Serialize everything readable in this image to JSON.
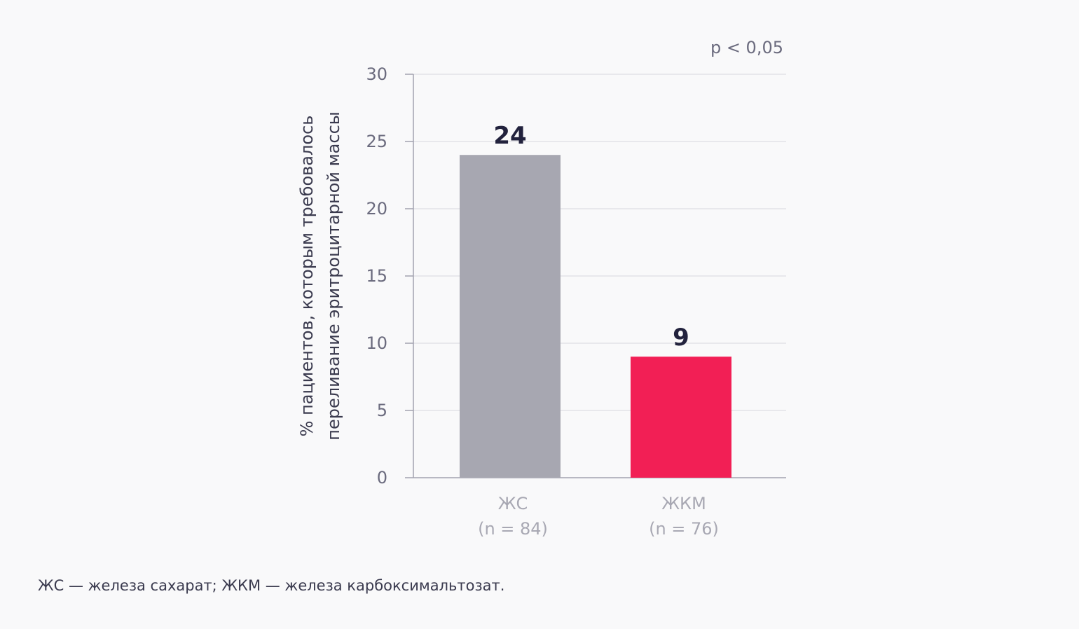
{
  "chart_data": {
    "type": "bar",
    "categories": [
      "ЖС",
      "ЖКМ"
    ],
    "category_subtitles": [
      "(n = 84)",
      "(n = 76)"
    ],
    "values": [
      24,
      9
    ],
    "data_labels": [
      "24",
      "9"
    ],
    "bar_colors": [
      "#a7a7b1",
      "#f21f55"
    ],
    "ylabel_lines": [
      "% пациентов, которым требовалось",
      "переливание эритроцитарной массы"
    ],
    "ylim": [
      0,
      30
    ],
    "yticks": [
      0,
      5,
      10,
      15,
      20,
      25,
      30
    ],
    "annotation": "p < 0,05",
    "grid": true
  },
  "footnote": "ЖС — железа сахарат; ЖКМ — железа карбоксимальтозат."
}
